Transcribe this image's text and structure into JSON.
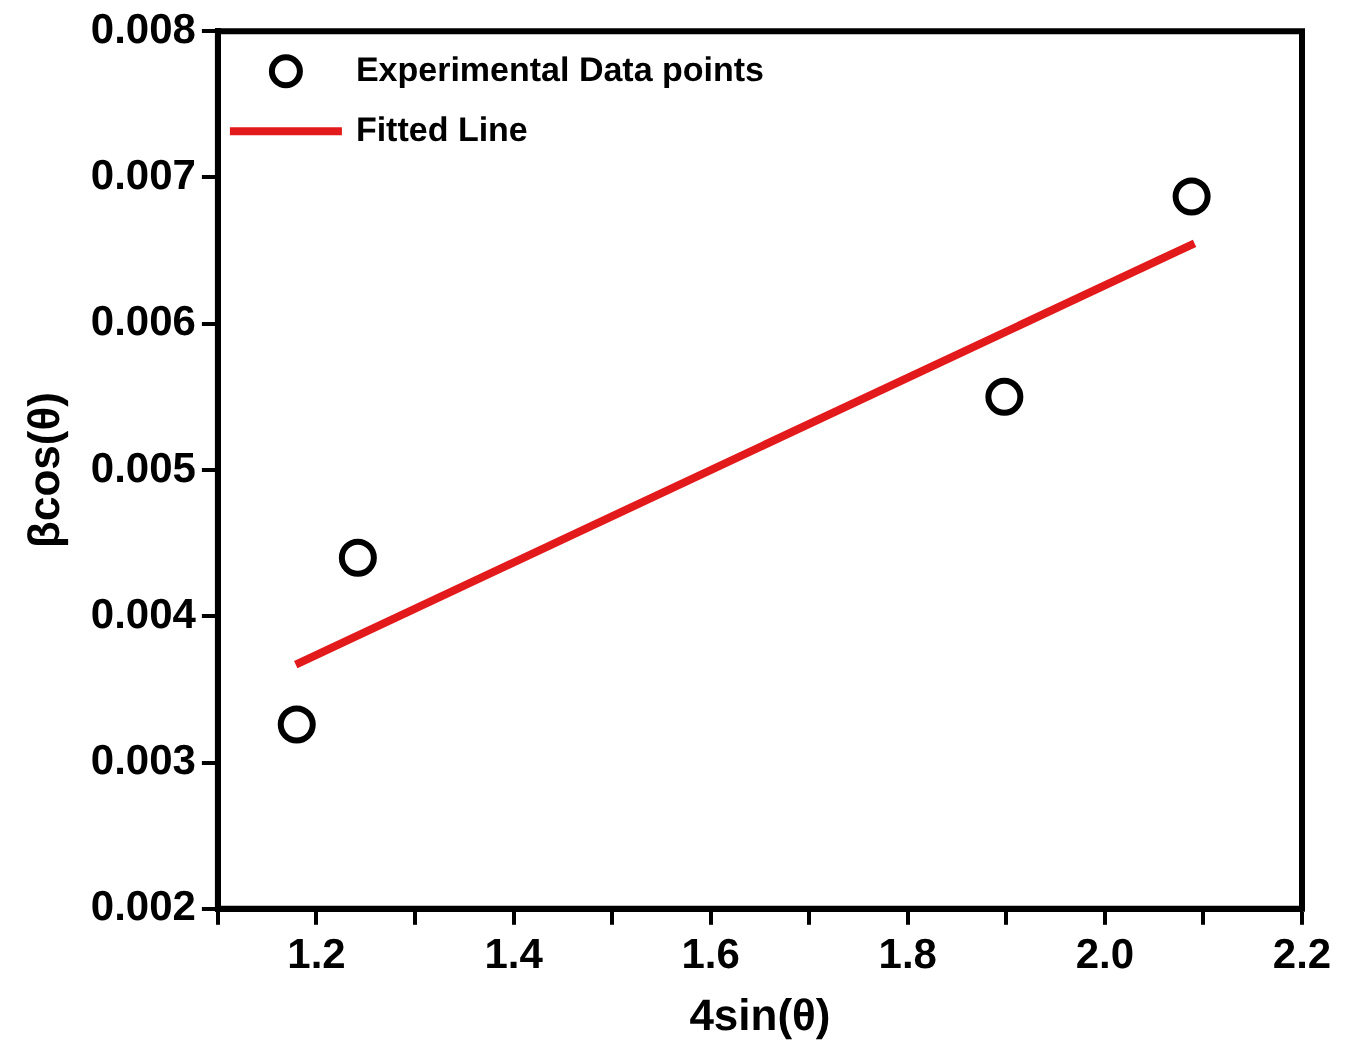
{
  "chart_data": {
    "type": "scatter",
    "xlabel": "4sin(θ)",
    "ylabel": "βcos(θ)",
    "xlim": [
      1.1,
      2.2
    ],
    "xticks": [
      {
        "value": 1.1,
        "label": null
      },
      1.2,
      {
        "value": 1.3,
        "label": null
      },
      1.4,
      {
        "value": 1.5,
        "label": null
      },
      1.6,
      {
        "value": 1.7,
        "label": null
      },
      1.8,
      {
        "value": 1.9,
        "label": null
      },
      {
        "value": 2,
        "label": "2.0"
      },
      {
        "value": 2.1,
        "label": null
      },
      2.2
    ],
    "ylim": [
      0.002,
      0.008
    ],
    "yticks": [
      0.002,
      0.003,
      0.004,
      0.005,
      0.006,
      0.007,
      0.008
    ],
    "grid": false,
    "legend": "top left",
    "series": [
      {
        "name": "Experimental Data points",
        "marker": "circle",
        "color": "#000000",
        "x": [
          1.18,
          1.242,
          1.898,
          2.088
        ],
        "values": [
          0.00326,
          0.0044,
          0.0055,
          0.00687
        ]
      },
      {
        "name": "Fitted Line",
        "type": "line",
        "marker": "none",
        "color": "#e31a1c",
        "x": [
          1.179,
          2.091
        ],
        "values": [
          0.00367,
          0.00655
        ]
      }
    ]
  }
}
